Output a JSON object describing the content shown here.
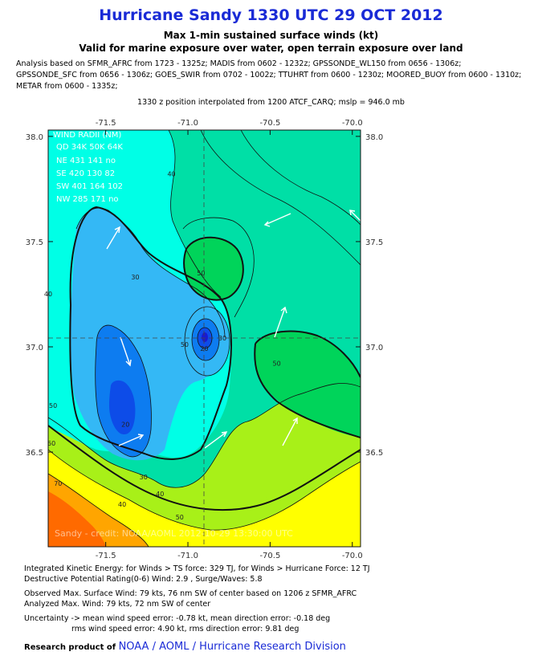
{
  "title": "Hurricane Sandy 1330 UTC 29 OCT 2012",
  "subtitle1": "Max 1-min sustained surface winds (kt)",
  "subtitle2": "Valid for marine exposure over water, open terrain exposure over land",
  "analysis_lines": [
    "Analysis based on SFMR_AFRC from 1723 - 1325z; MADIS from 0602 - 1232z; GPSSONDE_WL150 from 0656 - 1306z;",
    "GPSSONDE_SFC from 0656 - 1306z; GOES_SWIR from 0702 - 1002z; TTUHRT from 0600 - 1230z; MOORED_BUOY from 0600 - 1310z;",
    "METAR from 0600 - 1335z;"
  ],
  "position_line": "1330 z position interpolated from 1200 ATCF_CARQ; mslp = 946.0 mb",
  "wind_radii": {
    "header": "WIND RADII (NM)",
    "columns": "QD 34K 50K 64K",
    "rows": [
      "NE 431 141   no",
      "SE 420 130   82",
      "SW 401 164 102",
      "NW 285 171   no"
    ]
  },
  "watermark": "Sandy - credit: NOAA/AOML 2012-10-29 13:30:00 UTC",
  "chart_data": {
    "type": "heatmap",
    "xticks": [
      "-71.5",
      "-71.0",
      "-70.5",
      "-70.0"
    ],
    "yticks": [
      "38.0",
      "37.5",
      "37.0",
      "36.5"
    ],
    "xlim": [
      -71.85,
      -69.95
    ],
    "ylim": [
      36.05,
      38.03
    ],
    "center": [
      -70.94,
      37.03
    ],
    "contour_labels": [
      {
        "text": "40",
        "lon": -71.1,
        "lat": 37.81
      },
      {
        "text": "30",
        "lon": -71.32,
        "lat": 37.32
      },
      {
        "text": "40",
        "lon": -71.85,
        "lat": 37.24
      },
      {
        "text": "50",
        "lon": -71.02,
        "lat": 37.0
      },
      {
        "text": "20",
        "lon": -70.9,
        "lat": 36.98
      },
      {
        "text": "30",
        "lon": -70.79,
        "lat": 37.03
      },
      {
        "text": "50",
        "lon": -70.92,
        "lat": 37.34
      },
      {
        "text": "50",
        "lon": -70.46,
        "lat": 36.91
      },
      {
        "text": "50",
        "lon": -71.82,
        "lat": 36.71
      },
      {
        "text": "60",
        "lon": -71.83,
        "lat": 36.53
      },
      {
        "text": "70",
        "lon": -71.79,
        "lat": 36.34
      },
      {
        "text": "20",
        "lon": -71.38,
        "lat": 36.62
      },
      {
        "text": "30",
        "lon": -71.27,
        "lat": 36.37
      },
      {
        "text": "40",
        "lon": -71.4,
        "lat": 36.24
      },
      {
        "text": "40",
        "lon": -71.17,
        "lat": 36.29
      },
      {
        "text": "50",
        "lon": -71.05,
        "lat": 36.18
      }
    ]
  },
  "footer": {
    "ike": "Integrated Kinetic Energy: for Winds > TS force: 329 TJ, for Winds > Hurricane Force: 12 TJ",
    "dp": "Destructive Potential Rating(0-6)  Wind: 2.9 , Surge/Waves: 5.8",
    "obs": "Observed Max. Surface Wind: 79 kts, 76 nm SW of center based on 1206 z SFMR_AFRC",
    "ana": "Analyzed Max. Wind: 79 kts, 72 nm  SW of center",
    "unc1": "Uncertainty -> mean wind speed error:  -0.78 kt, mean direction error:  -0.18 deg",
    "unc2": "rms wind speed error: 4.90 kt, rms direction error: 9.81 deg",
    "credit_prefix": "Research product of",
    "credit_link": "NOAA / AOML / Hurricane Research Division"
  }
}
